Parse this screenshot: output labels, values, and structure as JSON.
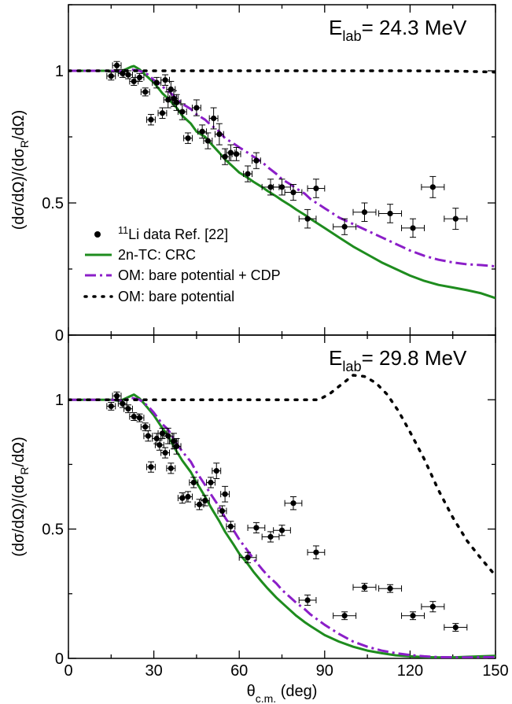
{
  "chart_data": [
    {
      "type": "line",
      "panel": "top",
      "energy_label": "E",
      "energy_sub": "lab",
      "energy_value": "= 24.3 MeV",
      "ylabel": "(dσ/dΩ)/(dσ_R/dΩ)",
      "xlim": [
        0,
        150
      ],
      "ylim": [
        0,
        1.25
      ],
      "xticks": [
        0,
        30,
        60,
        90,
        120,
        150
      ],
      "yticks": [
        0,
        0.5,
        1
      ],
      "ytick_labels": [
        "0",
        "0.5",
        "1"
      ],
      "legend": {
        "placement": "lower-left",
        "items": [
          {
            "key": "data",
            "sup": "11",
            "text": "Li data Ref. [22]"
          },
          {
            "key": "crc",
            "text": "2n-TC: CRC"
          },
          {
            "key": "cdp",
            "text": "OM: bare potential + CDP"
          },
          {
            "key": "bare",
            "text": "OM: bare potential"
          }
        ]
      },
      "series": [
        {
          "key": "crc",
          "color": "#1e8c1e",
          "style": "solid",
          "x": [
            0,
            10,
            15,
            18,
            20,
            22,
            23,
            25,
            27,
            30,
            33,
            35,
            38,
            40,
            43,
            45,
            48,
            50,
            53,
            55,
            58,
            60,
            63,
            65,
            68,
            70,
            73,
            75,
            78,
            80,
            83,
            85,
            90,
            95,
            100,
            105,
            110,
            115,
            120,
            125,
            130,
            135,
            140,
            145,
            150
          ],
          "y": [
            1.0,
            1.0,
            1.0,
            0.995,
            1.005,
            1.015,
            1.018,
            1.005,
            0.985,
            0.955,
            0.915,
            0.895,
            0.86,
            0.83,
            0.8,
            0.77,
            0.75,
            0.725,
            0.69,
            0.665,
            0.635,
            0.615,
            0.595,
            0.58,
            0.56,
            0.545,
            0.525,
            0.51,
            0.49,
            0.475,
            0.455,
            0.44,
            0.405,
            0.37,
            0.335,
            0.305,
            0.275,
            0.25,
            0.225,
            0.205,
            0.19,
            0.18,
            0.17,
            0.158,
            0.14
          ]
        },
        {
          "key": "cdp",
          "color": "#8b1ec8",
          "style": "dashdot",
          "x": [
            0,
            10,
            15,
            18,
            20,
            22,
            25,
            28,
            30,
            33,
            35,
            38,
            40,
            43,
            45,
            48,
            50,
            53,
            55,
            58,
            60,
            63,
            65,
            68,
            70,
            73,
            75,
            78,
            80,
            83,
            85,
            90,
            95,
            100,
            105,
            110,
            115,
            120,
            125,
            130,
            135,
            140,
            145,
            150
          ],
          "y": [
            1.0,
            1.0,
            1.0,
            0.998,
            1.0,
            1.005,
            1.0,
            0.985,
            0.965,
            0.94,
            0.925,
            0.895,
            0.875,
            0.855,
            0.835,
            0.815,
            0.795,
            0.77,
            0.745,
            0.725,
            0.71,
            0.69,
            0.675,
            0.655,
            0.635,
            0.61,
            0.59,
            0.57,
            0.555,
            0.535,
            0.515,
            0.48,
            0.445,
            0.42,
            0.395,
            0.37,
            0.345,
            0.32,
            0.3,
            0.285,
            0.275,
            0.268,
            0.265,
            0.26
          ]
        },
        {
          "key": "bare",
          "color": "#000000",
          "style": "dotted",
          "x": [
            0,
            20,
            40,
            60,
            80,
            100,
            120,
            140,
            150
          ],
          "y": [
            1.0,
            1.0,
            1.0,
            1.0,
            1.0,
            1.0,
            1.0,
            0.998,
            0.995
          ]
        }
      ],
      "data_points": {
        "x": [
          15,
          17,
          19,
          21,
          23,
          25,
          27,
          29,
          31,
          33,
          34,
          35,
          36,
          37,
          38,
          40,
          42,
          45,
          47,
          49,
          51,
          53,
          55,
          57,
          59,
          63,
          66,
          71,
          75,
          79,
          84,
          87,
          97,
          104,
          113,
          121,
          128,
          136
        ],
        "y": [
          0.98,
          1.02,
          0.99,
          0.985,
          0.96,
          0.975,
          0.92,
          0.815,
          0.955,
          0.84,
          0.965,
          0.89,
          0.93,
          0.895,
          0.88,
          0.845,
          0.745,
          0.86,
          0.77,
          0.735,
          0.82,
          0.76,
          0.675,
          0.69,
          0.685,
          0.61,
          0.66,
          0.56,
          0.56,
          0.54,
          0.44,
          0.555,
          0.41,
          0.465,
          0.46,
          0.405,
          0.56,
          0.44
        ],
        "xerr": [
          1.5,
          1.5,
          1.5,
          1.5,
          1.5,
          1.5,
          1.5,
          1.5,
          1.5,
          1.5,
          1.5,
          1.5,
          1.5,
          1.5,
          1.5,
          1.5,
          1.5,
          1.5,
          1.5,
          1.5,
          1.5,
          1.5,
          1.5,
          1.5,
          1.5,
          1.5,
          1.5,
          3,
          3,
          3,
          3,
          3,
          4,
          4,
          4,
          4,
          4,
          4
        ],
        "yerr": [
          0.015,
          0.015,
          0.015,
          0.015,
          0.015,
          0.015,
          0.015,
          0.02,
          0.02,
          0.02,
          0.02,
          0.03,
          0.03,
          0.03,
          0.03,
          0.03,
          0.02,
          0.03,
          0.025,
          0.03,
          0.04,
          0.04,
          0.03,
          0.03,
          0.025,
          0.03,
          0.03,
          0.03,
          0.03,
          0.03,
          0.035,
          0.035,
          0.03,
          0.035,
          0.035,
          0.035,
          0.04,
          0.04
        ]
      }
    },
    {
      "type": "line",
      "panel": "bottom",
      "energy_label": "E",
      "energy_sub": "lab",
      "energy_value": "= 29.8 MeV",
      "ylabel": "(dσ/dΩ)/(dσ_R/dΩ)",
      "xlabel": "θ_c.m. (deg)",
      "xlim": [
        0,
        150
      ],
      "ylim": [
        0,
        1.25
      ],
      "xticks": [
        0,
        30,
        60,
        90,
        120,
        150
      ],
      "xtick_labels": [
        "0",
        "30",
        "60",
        "90",
        "120",
        "150"
      ],
      "yticks": [
        0,
        0.5,
        1
      ],
      "ytick_labels": [
        "0",
        "0.5",
        "1"
      ],
      "series": [
        {
          "key": "crc",
          "color": "#1e8c1e",
          "style": "solid",
          "x": [
            0,
            10,
            15,
            18,
            20,
            22,
            23,
            25,
            27,
            30,
            33,
            35,
            38,
            40,
            43,
            45,
            48,
            50,
            53,
            55,
            58,
            60,
            63,
            65,
            68,
            70,
            73,
            75,
            78,
            80,
            83,
            85,
            90,
            95,
            100,
            105,
            110,
            115,
            120,
            125,
            130,
            135,
            140,
            145,
            150
          ],
          "y": [
            1.0,
            1.0,
            1.0,
            0.995,
            1.005,
            1.015,
            1.02,
            1.005,
            0.98,
            0.94,
            0.89,
            0.86,
            0.8,
            0.765,
            0.72,
            0.68,
            0.625,
            0.585,
            0.53,
            0.49,
            0.44,
            0.405,
            0.365,
            0.335,
            0.295,
            0.27,
            0.235,
            0.215,
            0.185,
            0.165,
            0.14,
            0.125,
            0.09,
            0.065,
            0.045,
            0.03,
            0.02,
            0.012,
            0.008,
            0.005,
            0.004,
            0.004,
            0.006,
            0.008,
            0.01
          ]
        },
        {
          "key": "cdp",
          "color": "#8b1ec8",
          "style": "dashdot",
          "x": [
            0,
            10,
            15,
            18,
            20,
            22,
            25,
            28,
            30,
            33,
            35,
            38,
            40,
            43,
            45,
            48,
            50,
            53,
            55,
            58,
            60,
            63,
            65,
            68,
            70,
            73,
            75,
            78,
            80,
            83,
            85,
            90,
            95,
            100,
            105,
            110,
            115,
            120,
            125,
            130,
            135,
            140,
            145,
            150
          ],
          "y": [
            1.0,
            1.0,
            1.0,
            0.998,
            1.0,
            1.008,
            1.0,
            0.975,
            0.95,
            0.905,
            0.885,
            0.83,
            0.8,
            0.76,
            0.72,
            0.67,
            0.635,
            0.585,
            0.545,
            0.495,
            0.46,
            0.415,
            0.385,
            0.345,
            0.32,
            0.29,
            0.265,
            0.235,
            0.215,
            0.19,
            0.17,
            0.13,
            0.095,
            0.065,
            0.045,
            0.03,
            0.02,
            0.013,
            0.008,
            0.005,
            0.004,
            0.004,
            0.005,
            0.005
          ]
        },
        {
          "key": "bare",
          "color": "#000000",
          "style": "dotted",
          "x": [
            0,
            20,
            40,
            60,
            80,
            88,
            92,
            96,
            100,
            104,
            108,
            112,
            116,
            120,
            125,
            130,
            135,
            140,
            145,
            150
          ],
          "y": [
            1.0,
            1.0,
            1.0,
            1.0,
            1.0,
            1.0,
            1.025,
            1.06,
            1.095,
            1.09,
            1.065,
            1.02,
            0.955,
            0.875,
            0.77,
            0.65,
            0.545,
            0.455,
            0.385,
            0.32
          ]
        }
      ],
      "data_points": {
        "x": [
          15,
          17,
          19,
          21,
          23,
          25,
          27,
          28,
          29,
          31,
          32,
          33,
          34,
          35,
          36,
          37,
          38,
          40,
          42,
          44,
          46,
          48,
          50,
          52,
          54,
          55,
          57,
          63,
          66,
          71,
          75,
          79,
          84,
          87,
          97,
          104,
          113,
          121,
          128,
          136
        ],
        "y": [
          0.975,
          1.015,
          0.985,
          0.965,
          0.935,
          0.93,
          0.895,
          0.86,
          0.74,
          0.85,
          0.825,
          0.87,
          0.795,
          0.86,
          0.735,
          0.84,
          0.82,
          0.62,
          0.625,
          0.68,
          0.595,
          0.61,
          0.68,
          0.725,
          0.57,
          0.635,
          0.51,
          0.39,
          0.505,
          0.47,
          0.495,
          0.6,
          0.225,
          0.41,
          0.165,
          0.275,
          0.27,
          0.165,
          0.2,
          0.12
        ],
        "xerr": [
          1.5,
          1.5,
          1.5,
          1.5,
          1.5,
          1.5,
          1.5,
          1.5,
          1.5,
          1.5,
          1.5,
          1.5,
          1.5,
          1.5,
          1.5,
          1.5,
          1.5,
          1.5,
          1.5,
          1.5,
          1.5,
          1.5,
          1.5,
          1.5,
          1.5,
          1.5,
          1.5,
          3,
          3,
          3,
          3,
          3,
          3,
          3,
          4,
          4,
          4,
          4,
          4,
          4
        ],
        "yerr": [
          0.015,
          0.015,
          0.015,
          0.015,
          0.015,
          0.015,
          0.015,
          0.02,
          0.02,
          0.02,
          0.02,
          0.02,
          0.02,
          0.03,
          0.02,
          0.03,
          0.03,
          0.02,
          0.02,
          0.02,
          0.02,
          0.02,
          0.02,
          0.03,
          0.02,
          0.03,
          0.02,
          0.02,
          0.02,
          0.02,
          0.02,
          0.025,
          0.02,
          0.025,
          0.015,
          0.015,
          0.015,
          0.015,
          0.02,
          0.015
        ]
      }
    }
  ]
}
